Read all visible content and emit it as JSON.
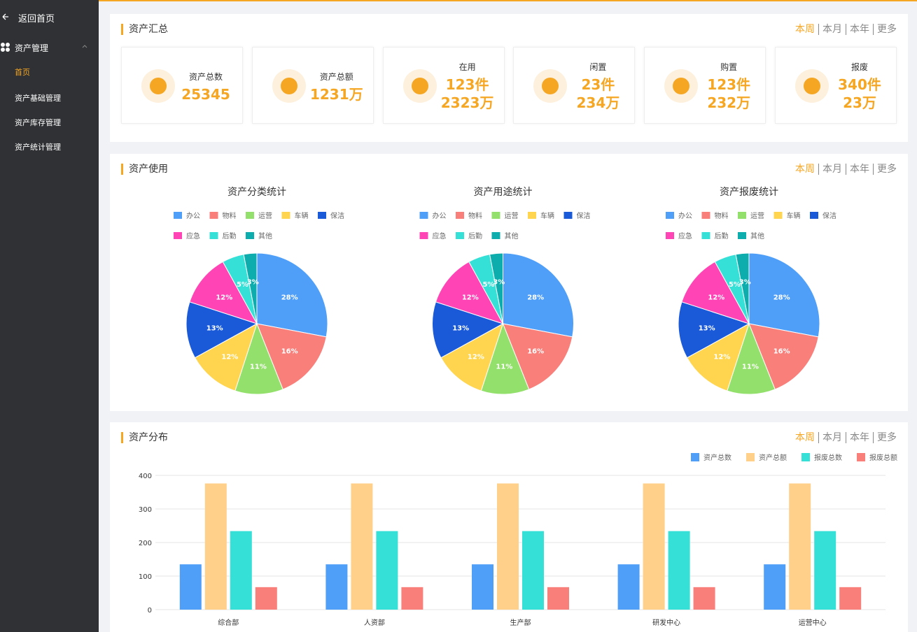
{
  "sidebar": {
    "back": "返回首页",
    "group": "资产管理",
    "items": [
      "首页",
      "资产基础管理",
      "资产库存管理",
      "资产统计管理"
    ]
  },
  "summary": {
    "title": "资产汇总",
    "filters": [
      "本周",
      "本月",
      "本年",
      "更多"
    ],
    "cards": [
      {
        "label": "资产总数",
        "values": [
          "25345"
        ]
      },
      {
        "label": "资产总额",
        "values": [
          "1231万"
        ]
      },
      {
        "label": "在用",
        "values": [
          "123件",
          "2323万"
        ]
      },
      {
        "label": "闲置",
        "values": [
          "23件",
          "234万"
        ]
      },
      {
        "label": "购置",
        "values": [
          "123件",
          "232万"
        ]
      },
      {
        "label": "报废",
        "values": [
          "340件",
          "23万"
        ]
      }
    ]
  },
  "usage": {
    "title": "资产使用",
    "filters": [
      "本周",
      "本月",
      "本年",
      "更多"
    ],
    "charts": [
      {
        "type": "pie",
        "title": "资产分类统计",
        "categories": [
          "办公",
          "物料",
          "运营",
          "车辆",
          "保洁",
          "应急",
          "后勤",
          "其他"
        ],
        "colors": [
          "#4f9ff9",
          "#f97f7b",
          "#94e06c",
          "#ffd54f",
          "#1a5ad9",
          "#ff45b5",
          "#35e0d6",
          "#0eadad"
        ],
        "values": [
          28,
          16,
          11,
          12,
          13,
          12,
          5,
          3
        ],
        "value_labels": [
          "28%",
          "16%",
          "11%",
          "12%",
          "13%",
          "12%",
          "5%",
          "3%"
        ]
      },
      {
        "type": "pie",
        "title": "资产用途统计",
        "categories": [
          "办公",
          "物料",
          "运营",
          "车辆",
          "保洁",
          "应急",
          "后勤",
          "其他"
        ],
        "colors": [
          "#4f9ff9",
          "#f97f7b",
          "#94e06c",
          "#ffd54f",
          "#1a5ad9",
          "#ff45b5",
          "#35e0d6",
          "#0eadad"
        ],
        "values": [
          28,
          16,
          11,
          12,
          13,
          12,
          5,
          3
        ],
        "value_labels": [
          "28%",
          "16%",
          "11%",
          "12%",
          "13%",
          "12%",
          "5%",
          "3%"
        ]
      },
      {
        "type": "pie",
        "title": "资产报废统计",
        "categories": [
          "办公",
          "物料",
          "运营",
          "车辆",
          "保洁",
          "应急",
          "后勤",
          "其他"
        ],
        "colors": [
          "#4f9ff9",
          "#f97f7b",
          "#94e06c",
          "#ffd54f",
          "#1a5ad9",
          "#ff45b5",
          "#35e0d6",
          "#0eadad"
        ],
        "values": [
          28,
          16,
          11,
          12,
          13,
          12,
          5,
          3
        ],
        "value_labels": [
          "28%",
          "16%",
          "11%",
          "12%",
          "13%",
          "12%",
          "5%",
          "3%"
        ]
      }
    ]
  },
  "distribution": {
    "title": "资产分布",
    "filters": [
      "本周",
      "本月",
      "本年",
      "更多"
    ],
    "chart_data": {
      "type": "bar",
      "categories": [
        "综合部",
        "人资部",
        "生产部",
        "研发中心",
        "运营中心"
      ],
      "series": [
        {
          "name": "资产总数",
          "color": "#4f9ff9",
          "values": [
            135,
            135,
            135,
            135,
            135
          ]
        },
        {
          "name": "资产总额",
          "color": "#ffd08a",
          "values": [
            376,
            376,
            376,
            376,
            376
          ]
        },
        {
          "name": "报废总数",
          "color": "#35e0d6",
          "values": [
            234,
            234,
            234,
            234,
            234
          ]
        },
        {
          "name": "报废总额",
          "color": "#f97f7b",
          "values": [
            67,
            67,
            67,
            67,
            67
          ]
        }
      ],
      "ylim": [
        0,
        400
      ],
      "yticks": [
        0,
        100,
        200,
        300,
        400
      ],
      "grid": true
    }
  }
}
